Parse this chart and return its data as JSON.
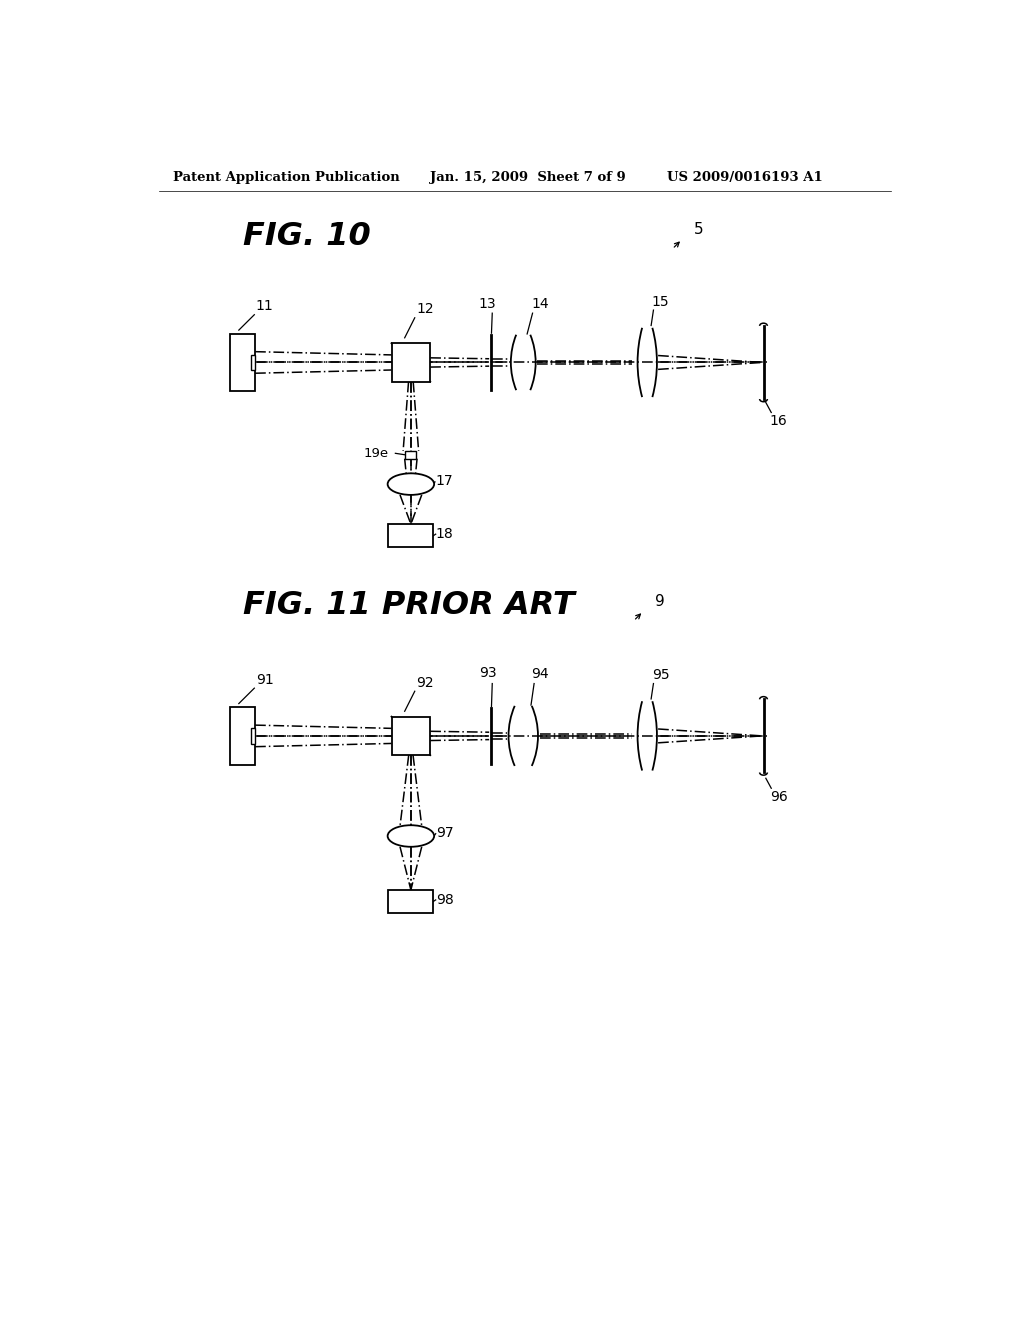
{
  "background_color": "#ffffff",
  "header_left": "Patent Application Publication",
  "header_mid": "Jan. 15, 2009  Sheet 7 of 9",
  "header_right": "US 2009/0016193 A1",
  "fig10_title": "FIG. 10",
  "fig10_label": "5",
  "fig11_title": "FIG. 11 PRIOR ART",
  "fig11_label": "9",
  "fig10": {
    "label_source": "11",
    "label_bs": "12",
    "label_thin1": "13",
    "label_lens1": "14",
    "label_lens2": "15",
    "label_disk": "16",
    "label_small": "19e",
    "label_det_lens": "17",
    "label_detector": "18"
  },
  "fig11": {
    "label_source": "91",
    "label_bs": "92",
    "label_thin1": "93",
    "label_lens1": "94",
    "label_lens2": "95",
    "label_disk": "96",
    "label_det_lens": "97",
    "label_detector": "98"
  }
}
